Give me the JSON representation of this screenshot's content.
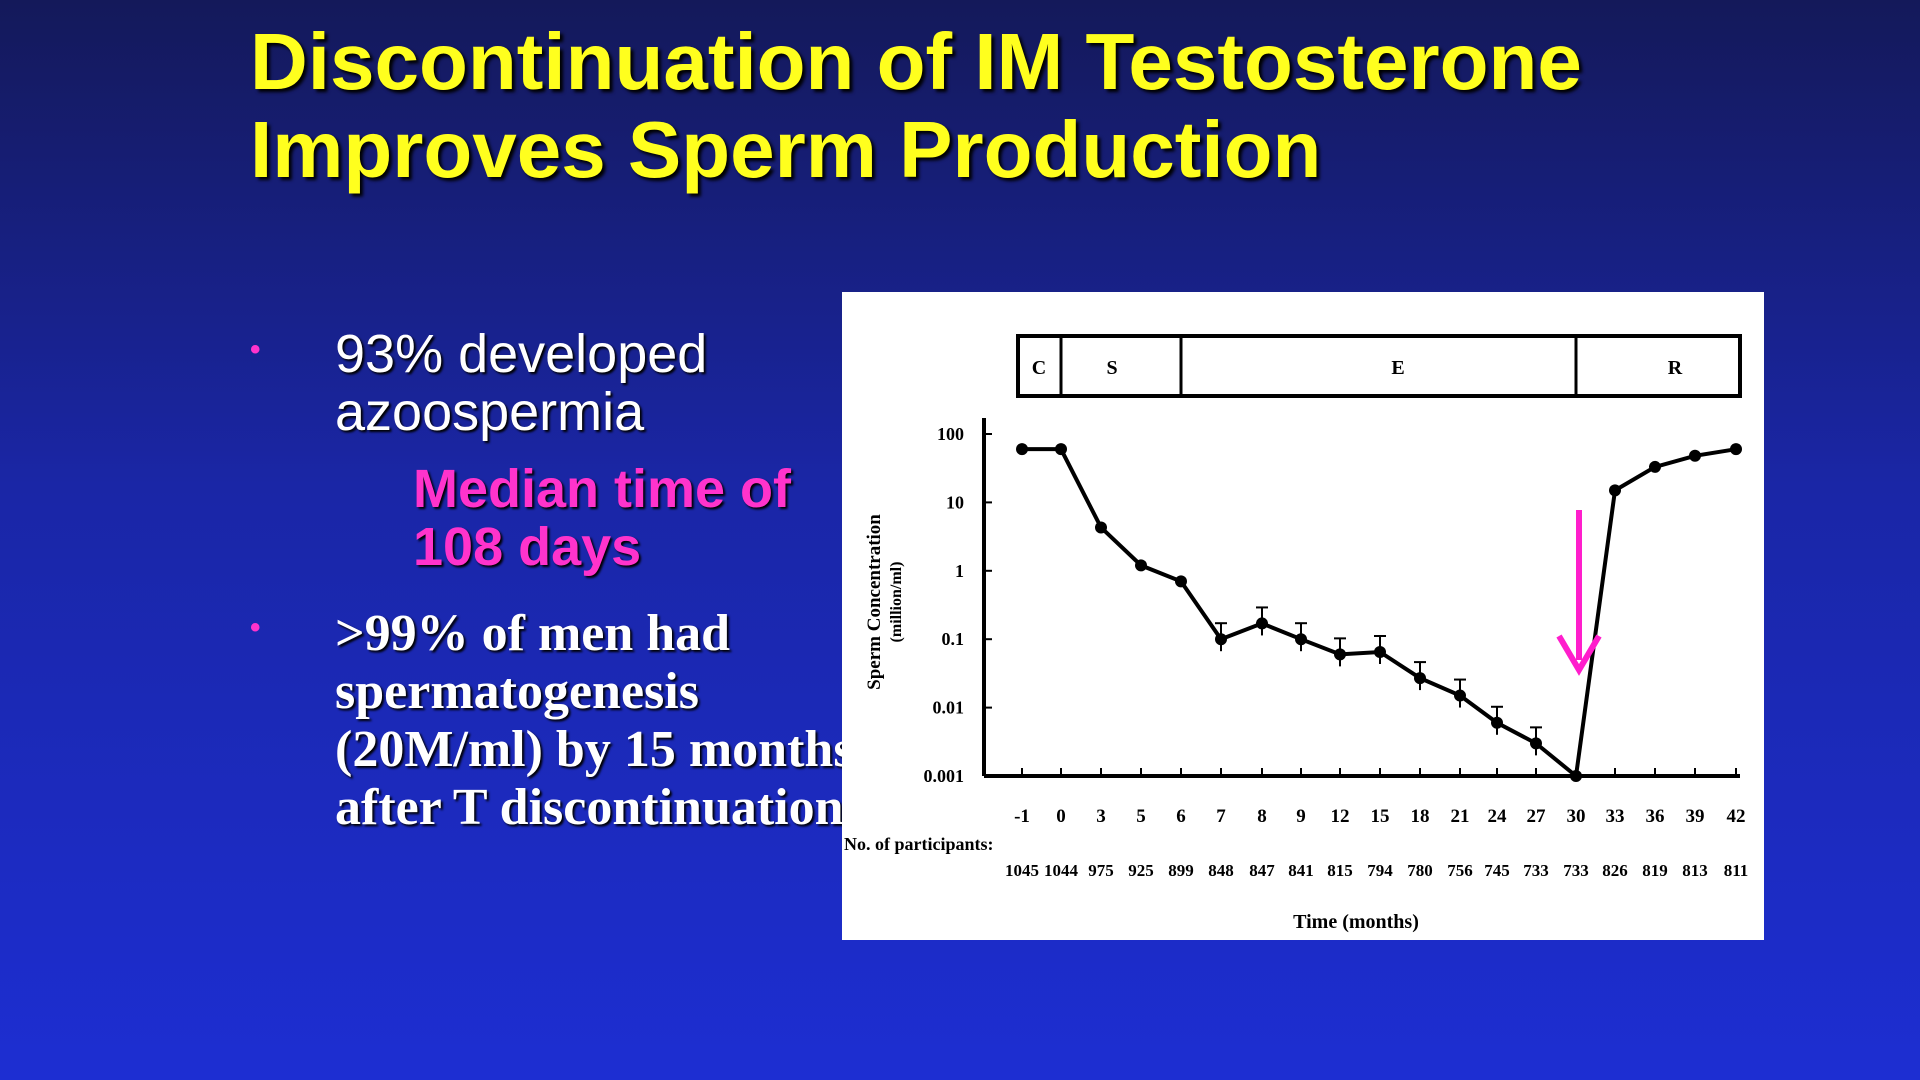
{
  "slide": {
    "title_line1": "Discontinuation of IM Testosterone",
    "title_line2": "Improves Sperm Production",
    "bullet_glyph": "•",
    "bullets": [
      {
        "text": "93% developed azoospermia",
        "sub": "Median time of 108 days"
      },
      {
        "text": ">99% of men had spermatogenesis (20M/ml) by 15 months after T discontinuation"
      }
    ]
  },
  "chart_data": {
    "type": "line",
    "title": "",
    "xlabel": "Time (months)",
    "ylabel": "Sperm Concentration",
    "ylabel_units": "(million/ml)",
    "y_scale": "log",
    "ylim": [
      0.001,
      100
    ],
    "y_ticks": [
      "100",
      "10",
      "1",
      "0.1",
      "0.01",
      "0.001"
    ],
    "x_ticks": [
      "-1",
      "0",
      "3",
      "5",
      "6",
      "7",
      "8",
      "9",
      "12",
      "15",
      "18",
      "21",
      "24",
      "27",
      "30",
      "33",
      "36",
      "39",
      "42"
    ],
    "phases": [
      "C",
      "S",
      "E",
      "R"
    ],
    "participants_label": "No. of participants:",
    "participants": [
      "1045",
      "1044",
      "975",
      "925",
      "899",
      "848",
      "847",
      "841",
      "815",
      "794",
      "780",
      "756",
      "745",
      "733",
      "733",
      "826",
      "819",
      "813",
      "811"
    ],
    "series": [
      {
        "values": [
          60,
          60,
          4.3,
          1.2,
          0.7,
          0.1,
          0.17,
          0.1,
          0.06,
          0.065,
          0.027,
          0.015,
          0.006,
          0.003,
          0.001,
          15,
          33,
          48,
          60
        ]
      }
    ],
    "error_bar_indices": [
      5,
      6,
      7,
      8,
      9,
      10,
      11,
      12,
      13
    ],
    "arrow_at_x": "30",
    "colors": {
      "line": "#000000",
      "arrow": "#ff1ecc"
    }
  }
}
